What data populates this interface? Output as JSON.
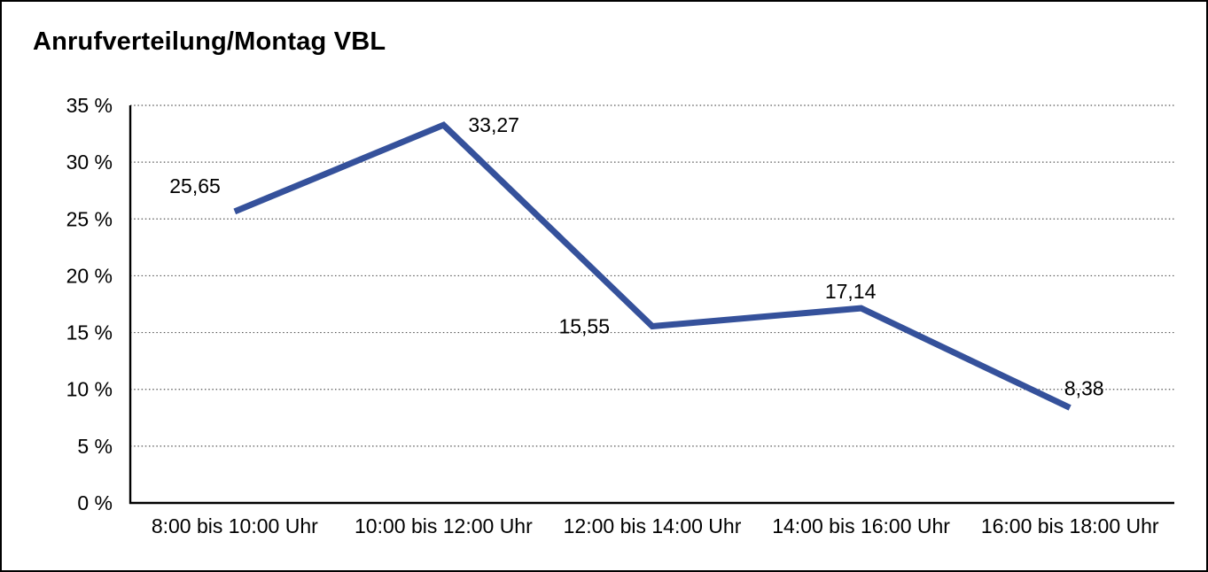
{
  "chart_data": {
    "type": "line",
    "title": "Anrufverteilung/Montag VBL",
    "categories": [
      "8:00 bis 10:00 Uhr",
      "10:00 bis 12:00 Uhr",
      "12:00 bis 14:00 Uhr",
      "14:00 bis 16:00 Uhr",
      "16:00 bis 18:00 Uhr"
    ],
    "values": [
      25.65,
      33.27,
      15.55,
      17.14,
      8.38
    ],
    "point_labels": [
      "25,65",
      "33,27",
      "15,55",
      "17,14",
      "8,38"
    ],
    "xlabel": "",
    "ylabel": "",
    "ylim": [
      0,
      35
    ],
    "ytick_step": 5,
    "ytick_labels": [
      "35 %",
      "30 %",
      "25 %",
      "20 %",
      "15 %",
      "10 %",
      "5 %",
      "0 %"
    ],
    "grid": "horizontal-dotted",
    "legend": "none",
    "line_color": "#35519b",
    "number_format": "comma-decimal"
  }
}
